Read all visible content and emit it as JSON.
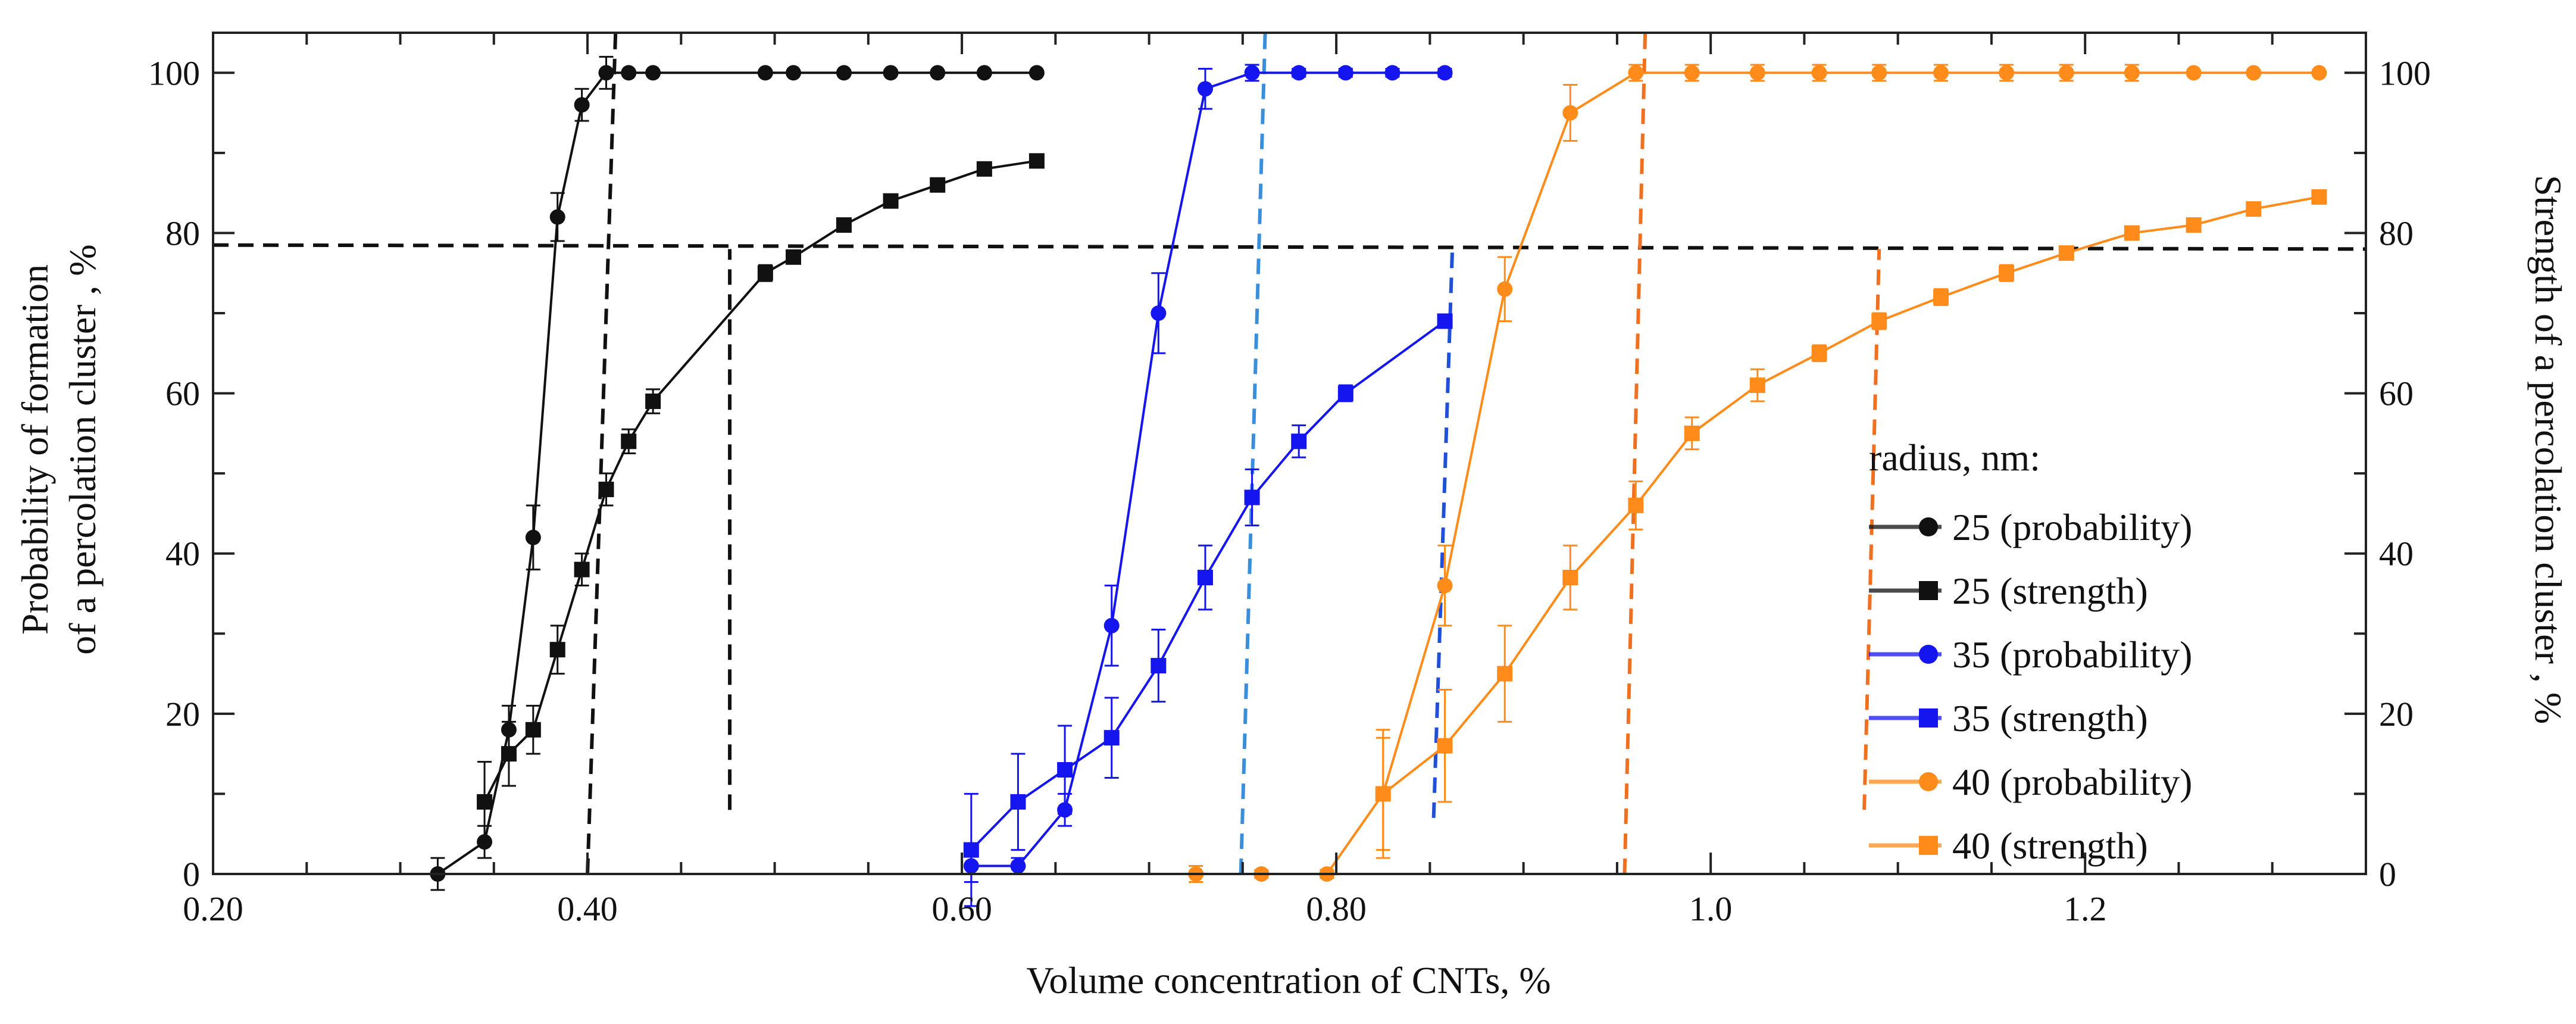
{
  "chart_data": {
    "type": "line",
    "xlabel": "Volume concentration of CNTs, %",
    "ylabel_left": [
      "Probability of formation",
      "of a percolation cluster , %"
    ],
    "ylabel_right": "Strength of a percolation cluster , %",
    "xlim": [
      0.2,
      1.35
    ],
    "ylim": [
      0,
      105
    ],
    "xticks": [
      0.2,
      0.4,
      0.6,
      0.8,
      1.0,
      1.2
    ],
    "xtick_labels": [
      "0.20",
      "0.40",
      "0.60",
      "0.80",
      "1.0",
      "1.2"
    ],
    "yticks": [
      0,
      20,
      40,
      60,
      80,
      100
    ],
    "ytick_labels": [
      "0",
      "20",
      "40",
      "60",
      "80",
      "100"
    ],
    "legend_title": "radius, nm:",
    "legend_position": "lower-right",
    "series": [
      {
        "name": "25 (probability)",
        "color": "#111111",
        "marker": "circle",
        "x": [
          0.32,
          0.345,
          0.358,
          0.371,
          0.384,
          0.397,
          0.41,
          0.422,
          0.435,
          0.495,
          0.51,
          0.537,
          0.562,
          0.587,
          0.612,
          0.64
        ],
        "y": [
          0,
          4,
          18,
          42,
          82,
          96,
          100,
          100,
          100,
          100,
          100,
          100,
          100,
          100,
          100,
          100
        ],
        "err": [
          2,
          2,
          3,
          4,
          3,
          2,
          2,
          0,
          0,
          0,
          0,
          0,
          0,
          0,
          0,
          0
        ]
      },
      {
        "name": "25 (strength)",
        "color": "#111111",
        "marker": "square",
        "x": [
          0.345,
          0.358,
          0.371,
          0.384,
          0.397,
          0.41,
          0.422,
          0.435,
          0.495,
          0.51,
          0.537,
          0.562,
          0.587,
          0.612,
          0.64
        ],
        "y": [
          9,
          15,
          18,
          28,
          38,
          48,
          54,
          59,
          75,
          77,
          81,
          84,
          86,
          88,
          89
        ],
        "err": [
          5,
          4,
          3,
          3,
          2,
          2,
          1.5,
          1.5,
          1,
          0.5,
          0.5,
          0.5,
          0.5,
          0.5,
          0.5
        ]
      },
      {
        "name": "35 (probability)",
        "color": "#1515f0",
        "marker": "circle",
        "x": [
          0.605,
          0.63,
          0.655,
          0.68,
          0.705,
          0.73,
          0.755,
          0.78,
          0.805,
          0.83,
          0.858
        ],
        "y": [
          1,
          1,
          8,
          31,
          70,
          98,
          100,
          100,
          100,
          100,
          100
        ],
        "err": [
          2,
          1,
          2,
          5,
          5,
          2.5,
          1,
          0.5,
          0.5,
          0.5,
          0.5
        ]
      },
      {
        "name": "35 (strength)",
        "color": "#1515f0",
        "marker": "square",
        "x": [
          0.605,
          0.63,
          0.655,
          0.68,
          0.705,
          0.73,
          0.755,
          0.78,
          0.805,
          0.858
        ],
        "y": [
          3,
          9,
          13,
          17,
          26,
          37,
          47,
          54,
          60,
          69
        ],
        "err": [
          7,
          6,
          5.5,
          5,
          4.5,
          4,
          3.5,
          2,
          1,
          0.5
        ]
      },
      {
        "name": "40 (probability)",
        "color": "#ff8c1a",
        "marker": "circle",
        "x": [
          0.725,
          0.76,
          0.795,
          0.825,
          0.858,
          0.89,
          0.925,
          0.96,
          0.99,
          1.025,
          1.058,
          1.09,
          1.123,
          1.158,
          1.19,
          1.225,
          1.258,
          1.29,
          1.325
        ],
        "y": [
          0,
          0,
          0,
          10,
          36,
          73,
          95,
          100,
          100,
          100,
          100,
          100,
          100,
          100,
          100,
          100,
          100,
          100,
          100
        ],
        "err": [
          1,
          0.5,
          0.5,
          7,
          5,
          4,
          3.5,
          1,
          1,
          1,
          1,
          1,
          1,
          1,
          1,
          1,
          0,
          0,
          0
        ]
      },
      {
        "name": "40 (strength)",
        "color": "#ff8c1a",
        "marker": "square",
        "x": [
          0.825,
          0.858,
          0.89,
          0.925,
          0.96,
          0.99,
          1.025,
          1.058,
          1.09,
          1.123,
          1.158,
          1.19,
          1.225,
          1.258,
          1.29,
          1.325
        ],
        "y": [
          10,
          16,
          25,
          37,
          46,
          55,
          61,
          65,
          69,
          72,
          75,
          77.5,
          80,
          81,
          83,
          84.5
        ],
        "err": [
          8,
          7,
          6,
          4,
          3,
          2,
          2,
          1,
          1,
          1,
          1,
          0.5,
          0.5,
          0.5,
          0.5,
          0.5
        ]
      }
    ],
    "reference_lines": [
      {
        "name": "threshold-78",
        "color": "#111111",
        "x1": 0.2,
        "y1": 78.5,
        "x2": 1.35,
        "y2": 78
      },
      {
        "name": "black-cutoff-probability",
        "color": "#111111",
        "x1": 0.4,
        "y1": 0,
        "x2": 0.415,
        "y2": 105
      },
      {
        "name": "black-cutoff-strength",
        "color": "#111111",
        "x1": 0.476,
        "y1": 8,
        "x2": 0.476,
        "y2": 78
      },
      {
        "name": "lightblue-cutoff",
        "color": "#3a8fdc",
        "x1": 0.749,
        "y1": 0,
        "x2": 0.762,
        "y2": 105
      },
      {
        "name": "blue-cutoff",
        "color": "#2050d8",
        "x1": 0.852,
        "y1": 7,
        "x2": 0.862,
        "y2": 78
      },
      {
        "name": "orange-cutoff-probability",
        "color": "#f07020",
        "x1": 0.954,
        "y1": 0,
        "x2": 0.965,
        "y2": 105
      },
      {
        "name": "orange-cutoff-strength",
        "color": "#f07020",
        "x1": 1.082,
        "y1": 8,
        "x2": 1.09,
        "y2": 78
      }
    ]
  }
}
